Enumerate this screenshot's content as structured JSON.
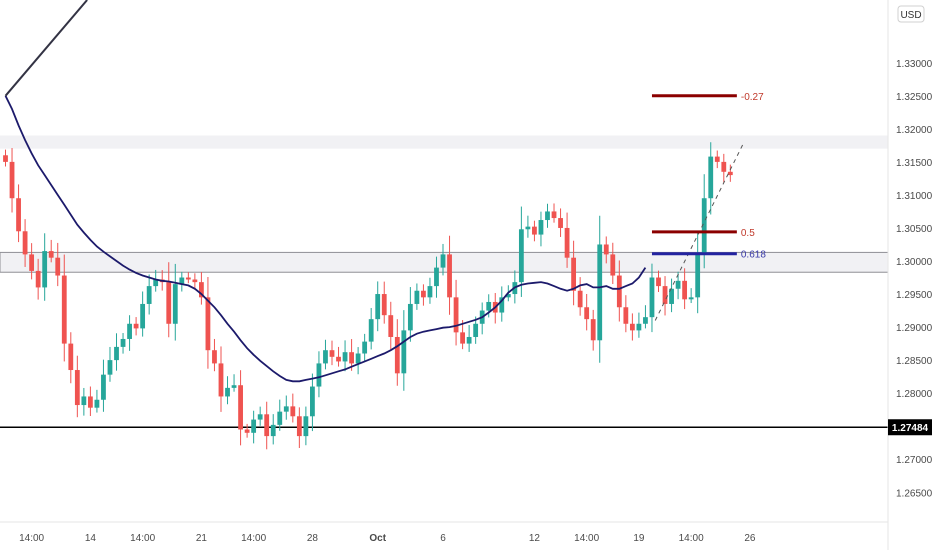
{
  "currency_badge": "USD",
  "colors": {
    "bull": "#26a69a",
    "bear": "#ef5350",
    "ma": "#1c1a6b",
    "level_line": "#000000",
    "fib_red": "#8b0000",
    "fib_blue": "#2323a0",
    "fib_label_red": "#c0392b",
    "fib_label_blue": "#3a3aa8",
    "zone_fill": "#f1f1f4",
    "zone_border": "#8f8f95",
    "grid_text": "#4a4a4a"
  },
  "chart_data": {
    "type": "candlestick",
    "title": "",
    "xlabel": "",
    "ylabel": "",
    "ylim": [
      1.2605,
      1.3395
    ],
    "bar_count": 137,
    "y_ticks": [
      "1.26500",
      "1.27000",
      "1.27500",
      "1.28000",
      "1.28500",
      "1.29000",
      "1.29500",
      "1.30000",
      "1.30500",
      "1.31000",
      "1.31500",
      "1.32000",
      "1.32500",
      "1.33000"
    ],
    "x_ticks": [
      {
        "label": "14:00",
        "bar": 4
      },
      {
        "label": "14",
        "bar": 13
      },
      {
        "label": "14:00",
        "bar": 21
      },
      {
        "label": "21",
        "bar": 30
      },
      {
        "label": "14:00",
        "bar": 38
      },
      {
        "label": "28",
        "bar": 47
      },
      {
        "label": "Oct",
        "bar": 57
      },
      {
        "label": "6",
        "bar": 67
      },
      {
        "label": "12",
        "bar": 81
      },
      {
        "label": "14:00",
        "bar": 89
      },
      {
        "label": "19",
        "bar": 97
      },
      {
        "label": "14:00",
        "bar": 105
      },
      {
        "label": "26",
        "bar": 114
      }
    ],
    "price_label": "1.27484",
    "horizontal_level": 1.27484,
    "resistance_zone": [
      1.2983,
      1.3013
    ],
    "top_zone": [
      1.317,
      1.319
    ],
    "fib_levels": [
      {
        "label": "-0.27",
        "value": 1.325,
        "bar_from": 99,
        "bar_to": 112,
        "color": "fib_red"
      },
      {
        "label": "0.5",
        "value": 1.3044,
        "bar_from": 99,
        "bar_to": 112,
        "color": "fib_red"
      },
      {
        "label": "0.618",
        "value": 1.3011,
        "bar_from": 99,
        "bar_to": 112,
        "color": "fib_blue"
      }
    ],
    "dashed_trendline": [
      {
        "bar": 99.5,
        "price": 1.291
      },
      {
        "bar": 113,
        "price": 1.3178
      }
    ],
    "drawn_line": [
      {
        "bar": 0,
        "price": 1.325
      },
      {
        "bar": 12.5,
        "price": 1.3395
      }
    ],
    "closes": [
      1.315,
      1.3095,
      1.3045,
      1.301,
      1.2985,
      1.296,
      1.3015,
      1.3005,
      1.2978,
      1.2875,
      1.2835,
      1.2782,
      1.2795,
      1.2778,
      1.279,
      1.2828,
      1.285,
      1.287,
      1.2882,
      1.2905,
      1.2898,
      1.2935,
      1.2962,
      1.2972,
      1.2968,
      1.2905,
      1.2965,
      1.2975,
      1.2972,
      1.2968,
      1.2945,
      1.2865,
      1.2845,
      1.2795,
      1.2808,
      1.2812,
      1.2745,
      1.274,
      1.276,
      1.2768,
      1.2735,
      1.2752,
      1.2772,
      1.278,
      1.2765,
      1.2735,
      1.2765,
      1.281,
      1.2845,
      1.2865,
      1.2855,
      1.2848,
      1.2862,
      1.2845,
      1.286,
      1.2878,
      1.2912,
      1.295,
      1.2918,
      1.2885,
      1.283,
      1.2895,
      1.2935,
      1.2955,
      1.2945,
      1.2962,
      1.299,
      1.301,
      1.2945,
      1.2892,
      1.2875,
      1.2885,
      1.2905,
      1.2925,
      1.2938,
      1.2922,
      1.2945,
      1.295,
      1.2968,
      1.3048,
      1.3052,
      1.304,
      1.3062,
      1.3075,
      1.3065,
      1.305,
      1.3005,
      1.2955,
      1.293,
      1.2912,
      1.288,
      1.3025,
      1.301,
      1.2978,
      1.293,
      1.2905,
      1.2895,
      1.2905,
      1.2915,
      1.2975,
      1.2962,
      1.2935,
      1.2958,
      1.297,
      1.2942,
      1.2945,
      1.3012,
      1.3095,
      1.3158,
      1.315,
      1.3135,
      1.313
    ],
    "ma": [
      1.325,
      1.323,
      1.3205,
      1.3183,
      1.3163,
      1.3145,
      1.313,
      1.3115,
      1.31,
      1.3085,
      1.307,
      1.3055,
      1.3043,
      1.3032,
      1.3022,
      1.3014,
      1.3007,
      1.3,
      1.2993,
      1.2987,
      1.2982,
      1.2978,
      1.2975,
      1.2972,
      1.297,
      1.2969,
      1.2967,
      1.2965,
      1.2963,
      1.2958,
      1.295,
      1.294,
      1.293,
      1.2918,
      1.2905,
      1.2893,
      1.288,
      1.2868,
      1.2858,
      1.2849,
      1.2841,
      1.2833,
      1.2826,
      1.282,
      1.2818,
      1.2818,
      1.282,
      1.2822,
      1.2824,
      1.2827,
      1.283,
      1.2833,
      1.2836,
      1.284,
      1.2844,
      1.2848,
      1.2852,
      1.2856,
      1.286,
      1.2865,
      1.2871,
      1.2878,
      1.2885,
      1.289,
      1.2893,
      1.2895,
      1.2897,
      1.2899,
      1.29,
      1.2902,
      1.2905,
      1.2908,
      1.2911,
      1.2915,
      1.2922,
      1.293,
      1.294,
      1.2952,
      1.296,
      1.2964,
      1.2966,
      1.2967,
      1.2968,
      1.2966,
      1.2962,
      1.2958,
      1.2955,
      1.2958,
      1.2963,
      1.2965,
      1.296,
      1.296,
      1.2962,
      1.2958,
      1.2958,
      1.2962,
      1.2966,
      1.2975,
      1.299
    ]
  }
}
